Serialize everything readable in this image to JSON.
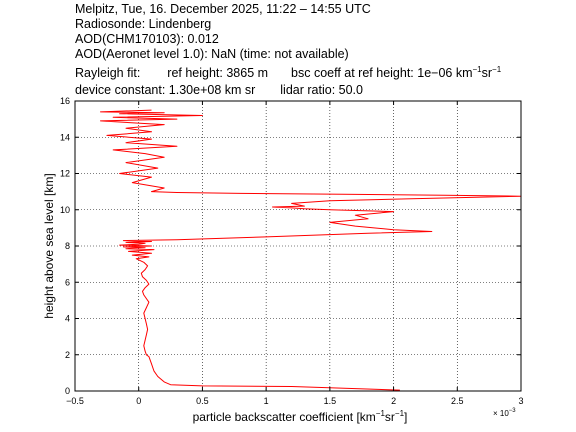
{
  "header": {
    "line1": "Melpitz, Tue, 16. December 2025, 11:22 – 14:55 UTC",
    "line2": "Radiosonde: Lindenberg",
    "line3": "AOD(CHM170103): 0.012",
    "line4": "AOD(Aeronet level 1.0): NaN   (time: not available)",
    "rayleigh_label": "Rayleigh fit:",
    "ref_height": "ref height: 3865 m",
    "bsc_coeff_prefix": "bsc coeff at ref height: 1e−06 km",
    "bsc_unit_exp1": "−1",
    "bsc_unit_mid": "sr",
    "bsc_unit_exp2": "−1",
    "device_constant": "device constant: 1.30e+08 km sr",
    "lidar_ratio": "lidar ratio: 50.0"
  },
  "chart_data": {
    "type": "line",
    "xlabel": "particle backscatter coefficient [km⁻¹sr⁻¹]",
    "xlabel_parts": {
      "text": "particle backscatter coefficient [km",
      "exp1": "−1",
      "mid": "sr",
      "exp2": "−1",
      "end": "]"
    },
    "ylabel": "height above sea level [km]",
    "xlim": [
      -0.5,
      3
    ],
    "ylim": [
      0,
      16
    ],
    "x_scale_note": "× 10",
    "x_scale_exp": "−3",
    "xticks": [
      "−0.5",
      "0",
      "0.5",
      "1",
      "1.5",
      "2",
      "2.5",
      "3"
    ],
    "yticks": [
      "0",
      "2",
      "4",
      "6",
      "8",
      "10",
      "12",
      "14",
      "16"
    ],
    "xtick_values": [
      -0.5,
      0,
      0.5,
      1,
      1.5,
      2,
      2.5,
      3
    ],
    "ytick_values": [
      0,
      2,
      4,
      6,
      8,
      10,
      12,
      14,
      16
    ],
    "grid": true,
    "series": [
      {
        "color": "#ff0000",
        "x": [
          2.05,
          1.2,
          0.5,
          0.25,
          0.2,
          0.15,
          0.12,
          0.1,
          0.08,
          0.06,
          0.05,
          0.04,
          0.05,
          0.06,
          0.07,
          0.06,
          0.05,
          0.04,
          0.06,
          0.08,
          0.06,
          0.04,
          0.03,
          0.05,
          0.08,
          0.06,
          0.03,
          0.02,
          0.05,
          0.07,
          0.04,
          -0.02,
          0.08,
          -0.05,
          0.1,
          -0.08,
          0.12,
          -0.1,
          0.05,
          -0.12,
          0.1,
          -0.15,
          0.0,
          0.05,
          -0.1,
          0.1,
          -0.12,
          0.3,
          1.0,
          1.8,
          2.3,
          2.0,
          1.7,
          1.5,
          1.8,
          1.7,
          2.0,
          1.5,
          1.3,
          1.2,
          1.05,
          1.3,
          1.2,
          1.5,
          2.1,
          3.0,
          2.4,
          1.6,
          0.8,
          0.3,
          0.1,
          0.2,
          -0.05,
          0.1,
          -0.15,
          0.15,
          -0.1,
          0.2,
          0.05,
          -0.2,
          0.3,
          -0.1,
          0.1,
          -0.25,
          0.1,
          -0.1,
          0.2,
          -0.3,
          0.3,
          -0.2,
          0.5,
          -0.15,
          0.2,
          -0.3,
          0.1
        ],
        "y": [
          0.05,
          0.25,
          0.28,
          0.35,
          0.5,
          0.8,
          1.1,
          1.5,
          1.9,
          2.0,
          2.2,
          2.5,
          2.8,
          3.1,
          3.4,
          3.7,
          4.0,
          4.3,
          4.6,
          4.9,
          5.1,
          5.3,
          5.5,
          5.7,
          5.9,
          6.1,
          6.3,
          6.5,
          6.7,
          6.9,
          7.1,
          7.3,
          7.4,
          7.5,
          7.6,
          7.7,
          7.8,
          7.85,
          7.9,
          7.95,
          8.0,
          8.05,
          8.1,
          8.15,
          8.2,
          8.25,
          8.3,
          8.35,
          8.5,
          8.7,
          8.8,
          8.9,
          9.1,
          9.3,
          9.5,
          9.7,
          9.9,
          10.0,
          10.05,
          10.1,
          10.15,
          10.2,
          10.35,
          10.5,
          10.6,
          10.75,
          10.8,
          10.85,
          10.9,
          10.95,
          11.0,
          11.2,
          11.5,
          11.8,
          12.0,
          12.3,
          12.6,
          12.9,
          13.1,
          13.3,
          13.5,
          13.7,
          13.9,
          14.1,
          14.3,
          14.5,
          14.7,
          14.9,
          15.0,
          15.1,
          15.2,
          15.3,
          15.35,
          15.4,
          15.5
        ]
      }
    ]
  }
}
